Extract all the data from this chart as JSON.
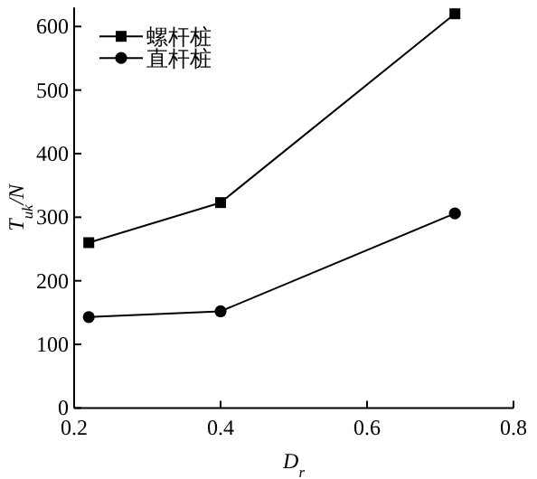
{
  "chart_data": {
    "type": "line",
    "xlabel": "D$_{r}$",
    "ylabel": "T$_{uk}$/N",
    "x": [
      0.22,
      0.4,
      0.72
    ],
    "series": [
      {
        "name": "螺杆桩",
        "color": "#000000",
        "marker": "square",
        "values": [
          260,
          323,
          620
        ]
      },
      {
        "name": "直杆桩",
        "color": "#000000",
        "marker": "circle",
        "values": [
          143,
          152,
          306
        ]
      }
    ],
    "xlim": [
      0.2,
      0.8
    ],
    "xticks": [
      0.2,
      0.4,
      0.6,
      0.8
    ],
    "ylim": [
      0,
      630
    ],
    "yticks": [
      0,
      100,
      200,
      300,
      400,
      500,
      600
    ],
    "grid": false,
    "legend": "top left",
    "line_style": "solid"
  }
}
